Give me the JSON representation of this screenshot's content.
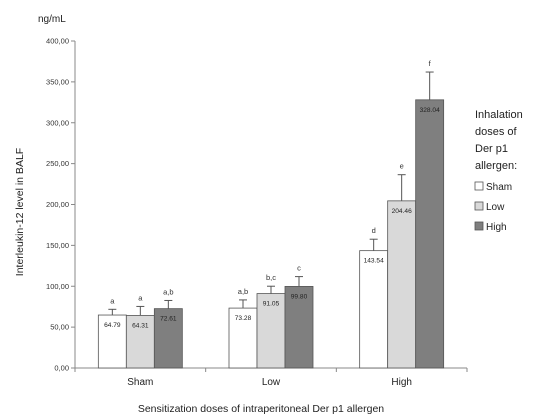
{
  "chart_data": {
    "type": "bar",
    "unit": "ng/mL",
    "ylabel": "Interleukin-12 level in BALF",
    "xlabel": "Sensitization doses of intraperitoneal Der p1 allergen",
    "ylim": [
      0,
      400
    ],
    "yticks": [
      "0,00",
      "50,00",
      "100,00",
      "150,00",
      "200,00",
      "250,00",
      "300,00",
      "350,00",
      "400,00"
    ],
    "ytick_values": [
      0,
      50,
      100,
      150,
      200,
      250,
      300,
      350,
      400
    ],
    "categories": [
      "Sham",
      "Low",
      "High"
    ],
    "legend": {
      "title": "Inhalation doses of Der p1 allergen:",
      "title_lines": [
        "Inhalation",
        "doses of",
        "Der p1",
        "allergen:"
      ],
      "placement": "right"
    },
    "series": [
      {
        "name": "Sham",
        "color": "#ffffff",
        "values": [
          64.79,
          73.28,
          143.54
        ],
        "value_labels": [
          "64.79",
          "73.28",
          "143.54"
        ],
        "errors": [
          7,
          10,
          14
        ],
        "significance": [
          "a",
          "a,b",
          "d"
        ]
      },
      {
        "name": "Low",
        "color": "#d9d9d9",
        "values": [
          64.31,
          91.05,
          204.46
        ],
        "value_labels": [
          "64.31",
          "91.05",
          "204.46"
        ],
        "errors": [
          11,
          9,
          32
        ],
        "significance": [
          "a",
          "b,c",
          "e"
        ]
      },
      {
        "name": "High",
        "color": "#7f7f7f",
        "values": [
          72.61,
          99.8,
          328.04
        ],
        "value_labels": [
          "72.61",
          "99.80",
          "328.04"
        ],
        "errors": [
          10,
          12,
          34
        ],
        "significance": [
          "a,b",
          "c",
          "f"
        ]
      }
    ],
    "grid": false
  }
}
